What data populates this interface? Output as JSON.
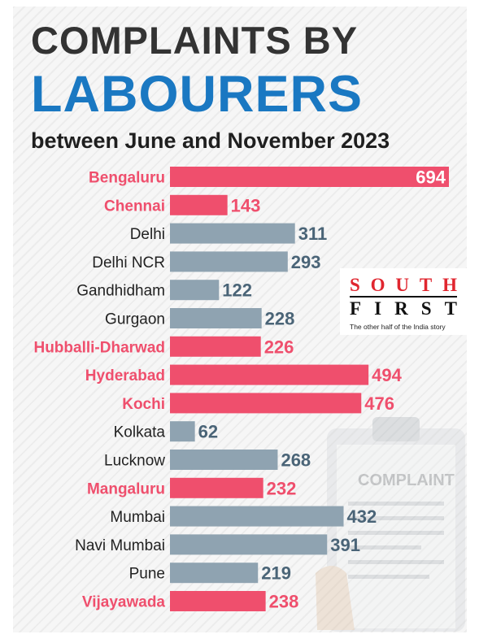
{
  "header": {
    "title_line1": "COMPLAINTS BY",
    "title_line2": "LABOURERS",
    "subtitle": "between June and November 2023"
  },
  "logo": {
    "letters_top": [
      "S",
      "O",
      "U",
      "T",
      "H"
    ],
    "letters_bottom": [
      "F",
      "I",
      "R",
      "S",
      "T"
    ],
    "tagline": "The other half of the India story"
  },
  "illustration": {
    "label": "COMPLAINT",
    "icon": "clipboard-complaint-icon"
  },
  "colors": {
    "highlight": "#ef4f6d",
    "default": "#8fa3b1",
    "value_default": "#4a6477",
    "category_default": "#222222"
  },
  "chart_data": {
    "type": "bar",
    "orientation": "horizontal",
    "title": "COMPLAINTS BY LABOURERS",
    "subtitle": "between June and November 2023",
    "categories": [
      "Bengaluru",
      "Chennai",
      "Delhi",
      "Delhi NCR",
      "Gandhidham",
      "Gurgaon",
      "Hubballi-Dharwad",
      "Hyderabad",
      "Kochi",
      "Kolkata",
      "Lucknow",
      "Mangaluru",
      "Mumbai",
      "Navi Mumbai",
      "Pune",
      "Vijayawada"
    ],
    "values": [
      694,
      143,
      311,
      293,
      122,
      228,
      226,
      494,
      476,
      62,
      268,
      232,
      432,
      391,
      219,
      238
    ],
    "highlighted": [
      true,
      true,
      false,
      false,
      false,
      false,
      true,
      true,
      true,
      false,
      false,
      true,
      false,
      false,
      false,
      true
    ],
    "xlim": [
      0,
      694
    ],
    "grid": false,
    "legend": "none"
  }
}
